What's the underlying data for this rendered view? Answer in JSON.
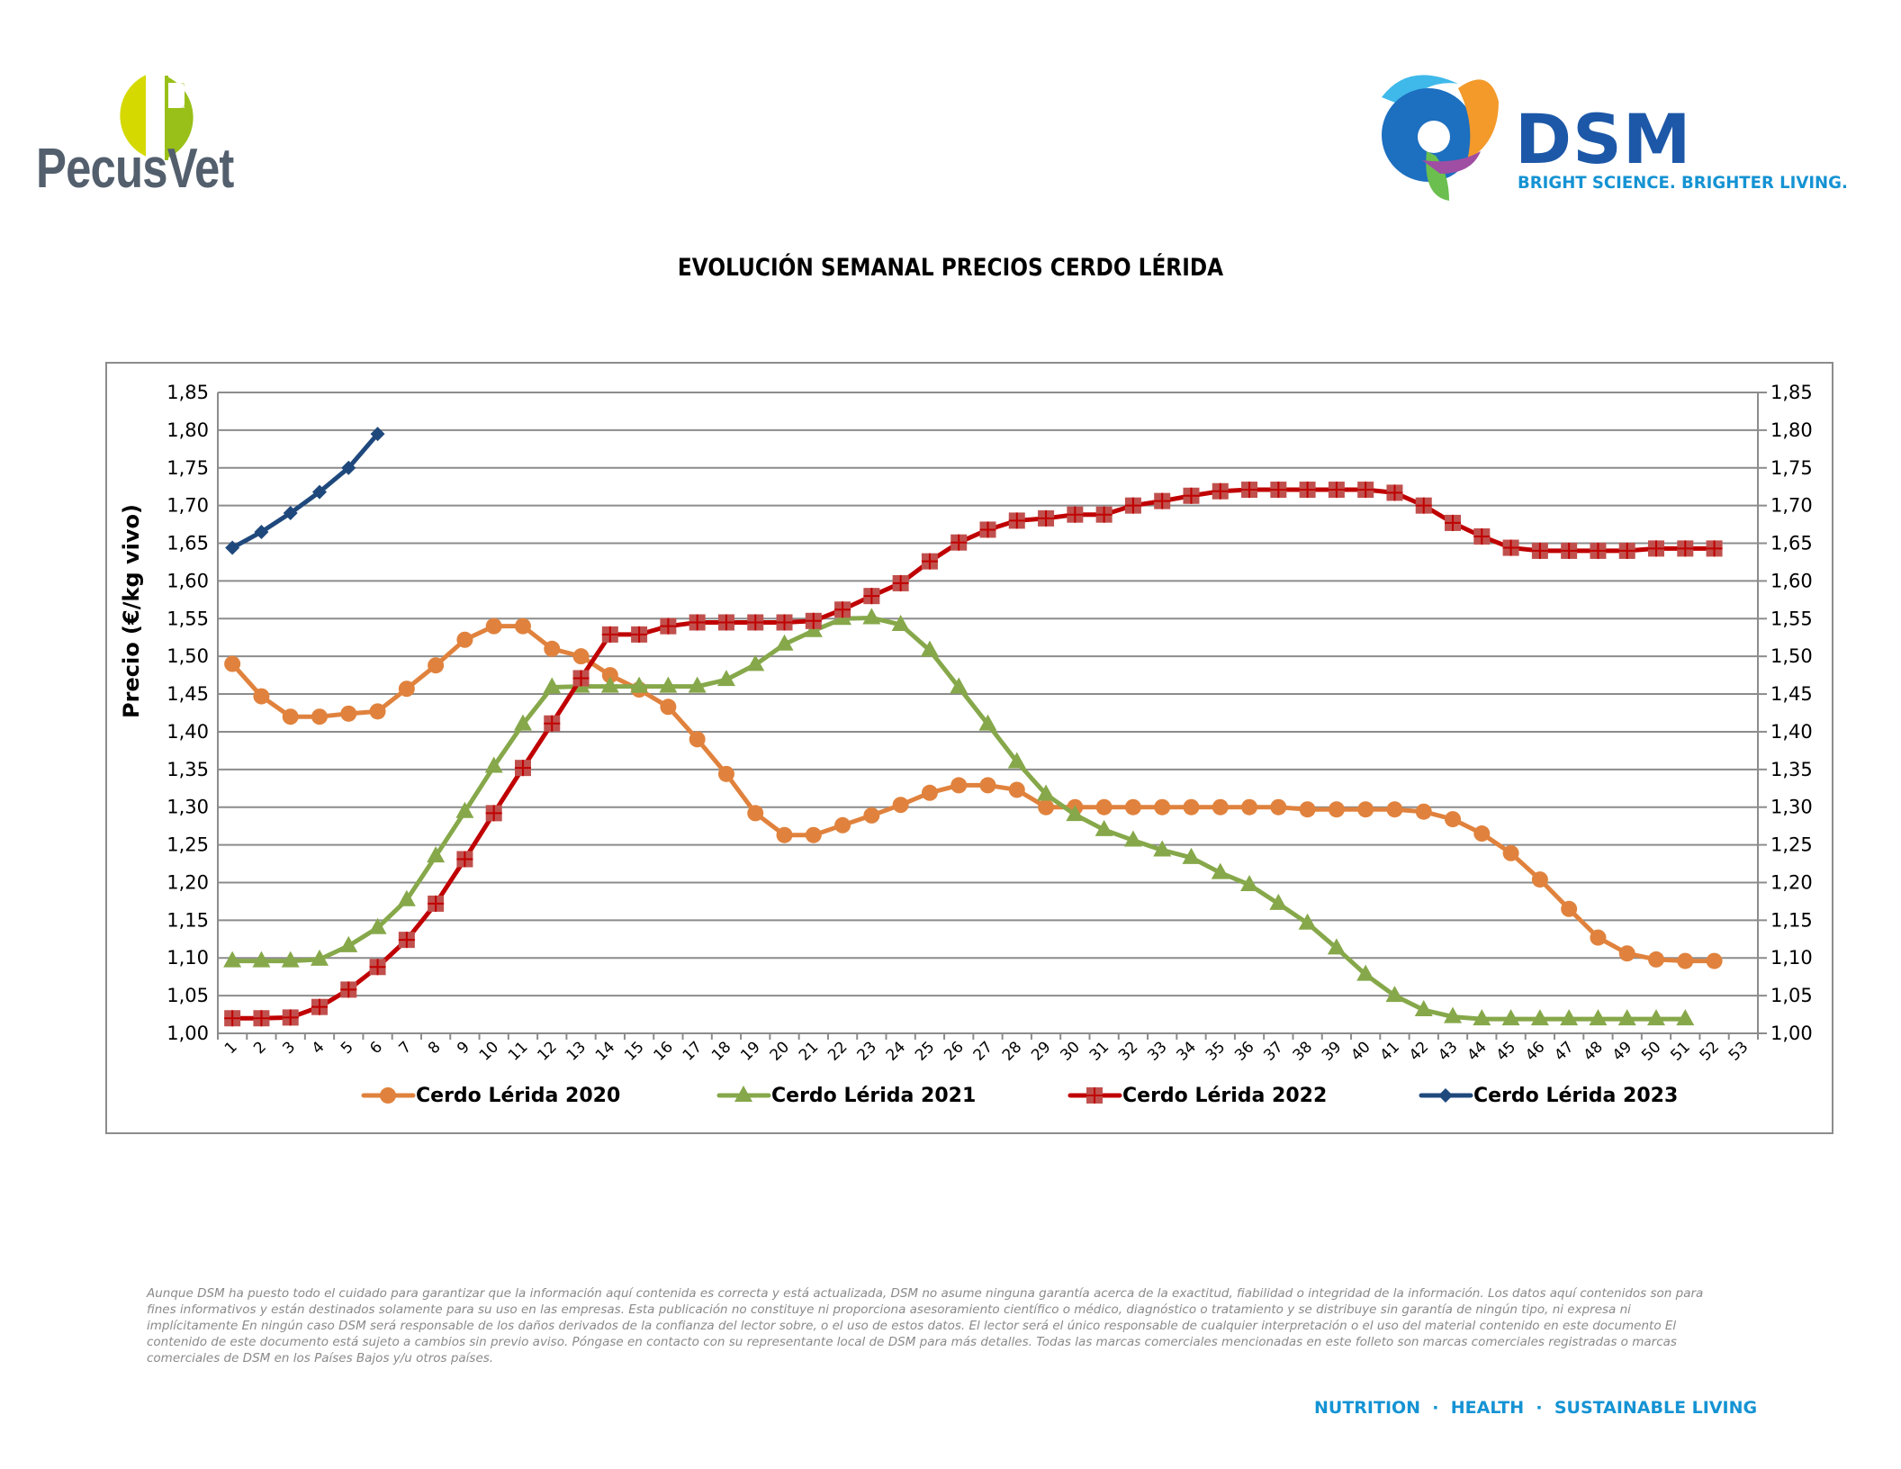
{
  "header": {
    "left_logo_text": "PecusVet",
    "right_logo_text": "DSM",
    "right_logo_tagline": "BRIGHT SCIENCE. BRIGHTER LIVING."
  },
  "title": "EVOLUCIÓN SEMANAL PRECIOS CERDO LÉRIDA",
  "chart_data": {
    "type": "line",
    "title": "EVOLUCIÓN SEMANAL PRECIOS CERDO LÉRIDA",
    "xlabel": "",
    "ylabel": "Precio (€/kg vivo)",
    "ylabel_secondary": "",
    "ylim": [
      1.0,
      1.85
    ],
    "y_step": 0.05,
    "y_ticks": [
      "1,00",
      "1,05",
      "1,10",
      "1,15",
      "1,20",
      "1,25",
      "1,30",
      "1,35",
      "1,40",
      "1,45",
      "1,50",
      "1,55",
      "1,60",
      "1,65",
      "1,70",
      "1,75",
      "1,80",
      "1,85"
    ],
    "x": [
      1,
      2,
      3,
      4,
      5,
      6,
      7,
      8,
      9,
      10,
      11,
      12,
      13,
      14,
      15,
      16,
      17,
      18,
      19,
      20,
      21,
      22,
      23,
      24,
      25,
      26,
      27,
      28,
      29,
      30,
      31,
      32,
      33,
      34,
      35,
      36,
      37,
      38,
      39,
      40,
      41,
      42,
      43,
      44,
      45,
      46,
      47,
      48,
      49,
      50,
      51,
      52,
      53
    ],
    "grid": true,
    "legend_position": "bottom",
    "series": [
      {
        "name": "Cerdo Lérida 2020",
        "color": "#e0823d",
        "marker": "circle",
        "values": [
          1.49,
          1.447,
          1.42,
          1.42,
          1.424,
          1.427,
          1.457,
          1.488,
          1.522,
          1.54,
          1.54,
          1.51,
          1.5,
          1.475,
          1.456,
          1.433,
          1.39,
          1.344,
          1.292,
          1.263,
          1.263,
          1.276,
          1.289,
          1.303,
          1.319,
          1.329,
          1.329,
          1.323,
          1.3,
          1.3,
          1.3,
          1.3,
          1.3,
          1.3,
          1.3,
          1.3,
          1.3,
          1.297,
          1.297,
          1.297,
          1.297,
          1.294,
          1.284,
          1.265,
          1.239,
          1.204,
          1.165,
          1.127,
          1.106,
          1.098,
          1.096,
          1.096
        ]
      },
      {
        "name": "Cerdo Lérida 2021",
        "color": "#86a84a",
        "marker": "triangle",
        "values": [
          1.096,
          1.096,
          1.096,
          1.098,
          1.116,
          1.14,
          1.177,
          1.235,
          1.294,
          1.354,
          1.41,
          1.459,
          1.46,
          1.46,
          1.46,
          1.46,
          1.46,
          1.469,
          1.489,
          1.516,
          1.534,
          1.55,
          1.551,
          1.542,
          1.508,
          1.459,
          1.41,
          1.36,
          1.317,
          1.29,
          1.27,
          1.256,
          1.243,
          1.233,
          1.213,
          1.197,
          1.172,
          1.146,
          1.113,
          1.078,
          1.05,
          1.031,
          1.022,
          1.019,
          1.019,
          1.019,
          1.019,
          1.019,
          1.019,
          1.019,
          1.019
        ]
      },
      {
        "name": "Cerdo Lérida 2022",
        "color": "#c00000",
        "marker": "square-cross",
        "values": [
          1.02,
          1.02,
          1.021,
          1.035,
          1.058,
          1.088,
          1.124,
          1.172,
          1.231,
          1.292,
          1.352,
          1.411,
          1.471,
          1.529,
          1.529,
          1.54,
          1.545,
          1.545,
          1.545,
          1.545,
          1.547,
          1.562,
          1.58,
          1.597,
          1.626,
          1.651,
          1.668,
          1.68,
          1.683,
          1.688,
          1.688,
          1.7,
          1.706,
          1.713,
          1.719,
          1.721,
          1.721,
          1.721,
          1.721,
          1.721,
          1.717,
          1.7,
          1.677,
          1.659,
          1.644,
          1.64,
          1.64,
          1.64,
          1.64,
          1.643,
          1.643,
          1.643
        ]
      },
      {
        "name": "Cerdo Lérida 2023",
        "color": "#1f497d",
        "marker": "diamond",
        "values": [
          1.644,
          1.665,
          1.69,
          1.718,
          1.75,
          1.795
        ]
      }
    ]
  },
  "disclaimer": "Aunque DSM ha puesto todo el cuidado para garantizar que la información aquí contenida es correcta y está actualizada, DSM no asume ninguna garantía acerca de la exactitud, fiabilidad o integridad de la información. Los datos aquí contenidos son para fines informativos y están destinados solamente para su uso en las empresas. Esta publicación no constituye ni proporciona asesoramiento científico o médico, diagnóstico o tratamiento y se distribuye sin garantía de ningún tipo, ni expresa ni implícitamente En ningún caso DSM será responsable de los daños derivados de la confianza del lector sobre, o el uso de estos datos. El lector será el único responsable de cualquier interpretación o el uso del material contenido en este documento El contenido de este documento está sujeto a cambios sin previo aviso. Póngase en contacto con su representante local de DSM para más detalles. Todas las marcas comerciales mencionadas en este folleto son marcas comerciales registradas o marcas comerciales de DSM en los Países Bajos y/u otros países.",
  "footer_tagline": "NUTRITION  ·  HEALTH  ·  SUSTAINABLE LIVING"
}
